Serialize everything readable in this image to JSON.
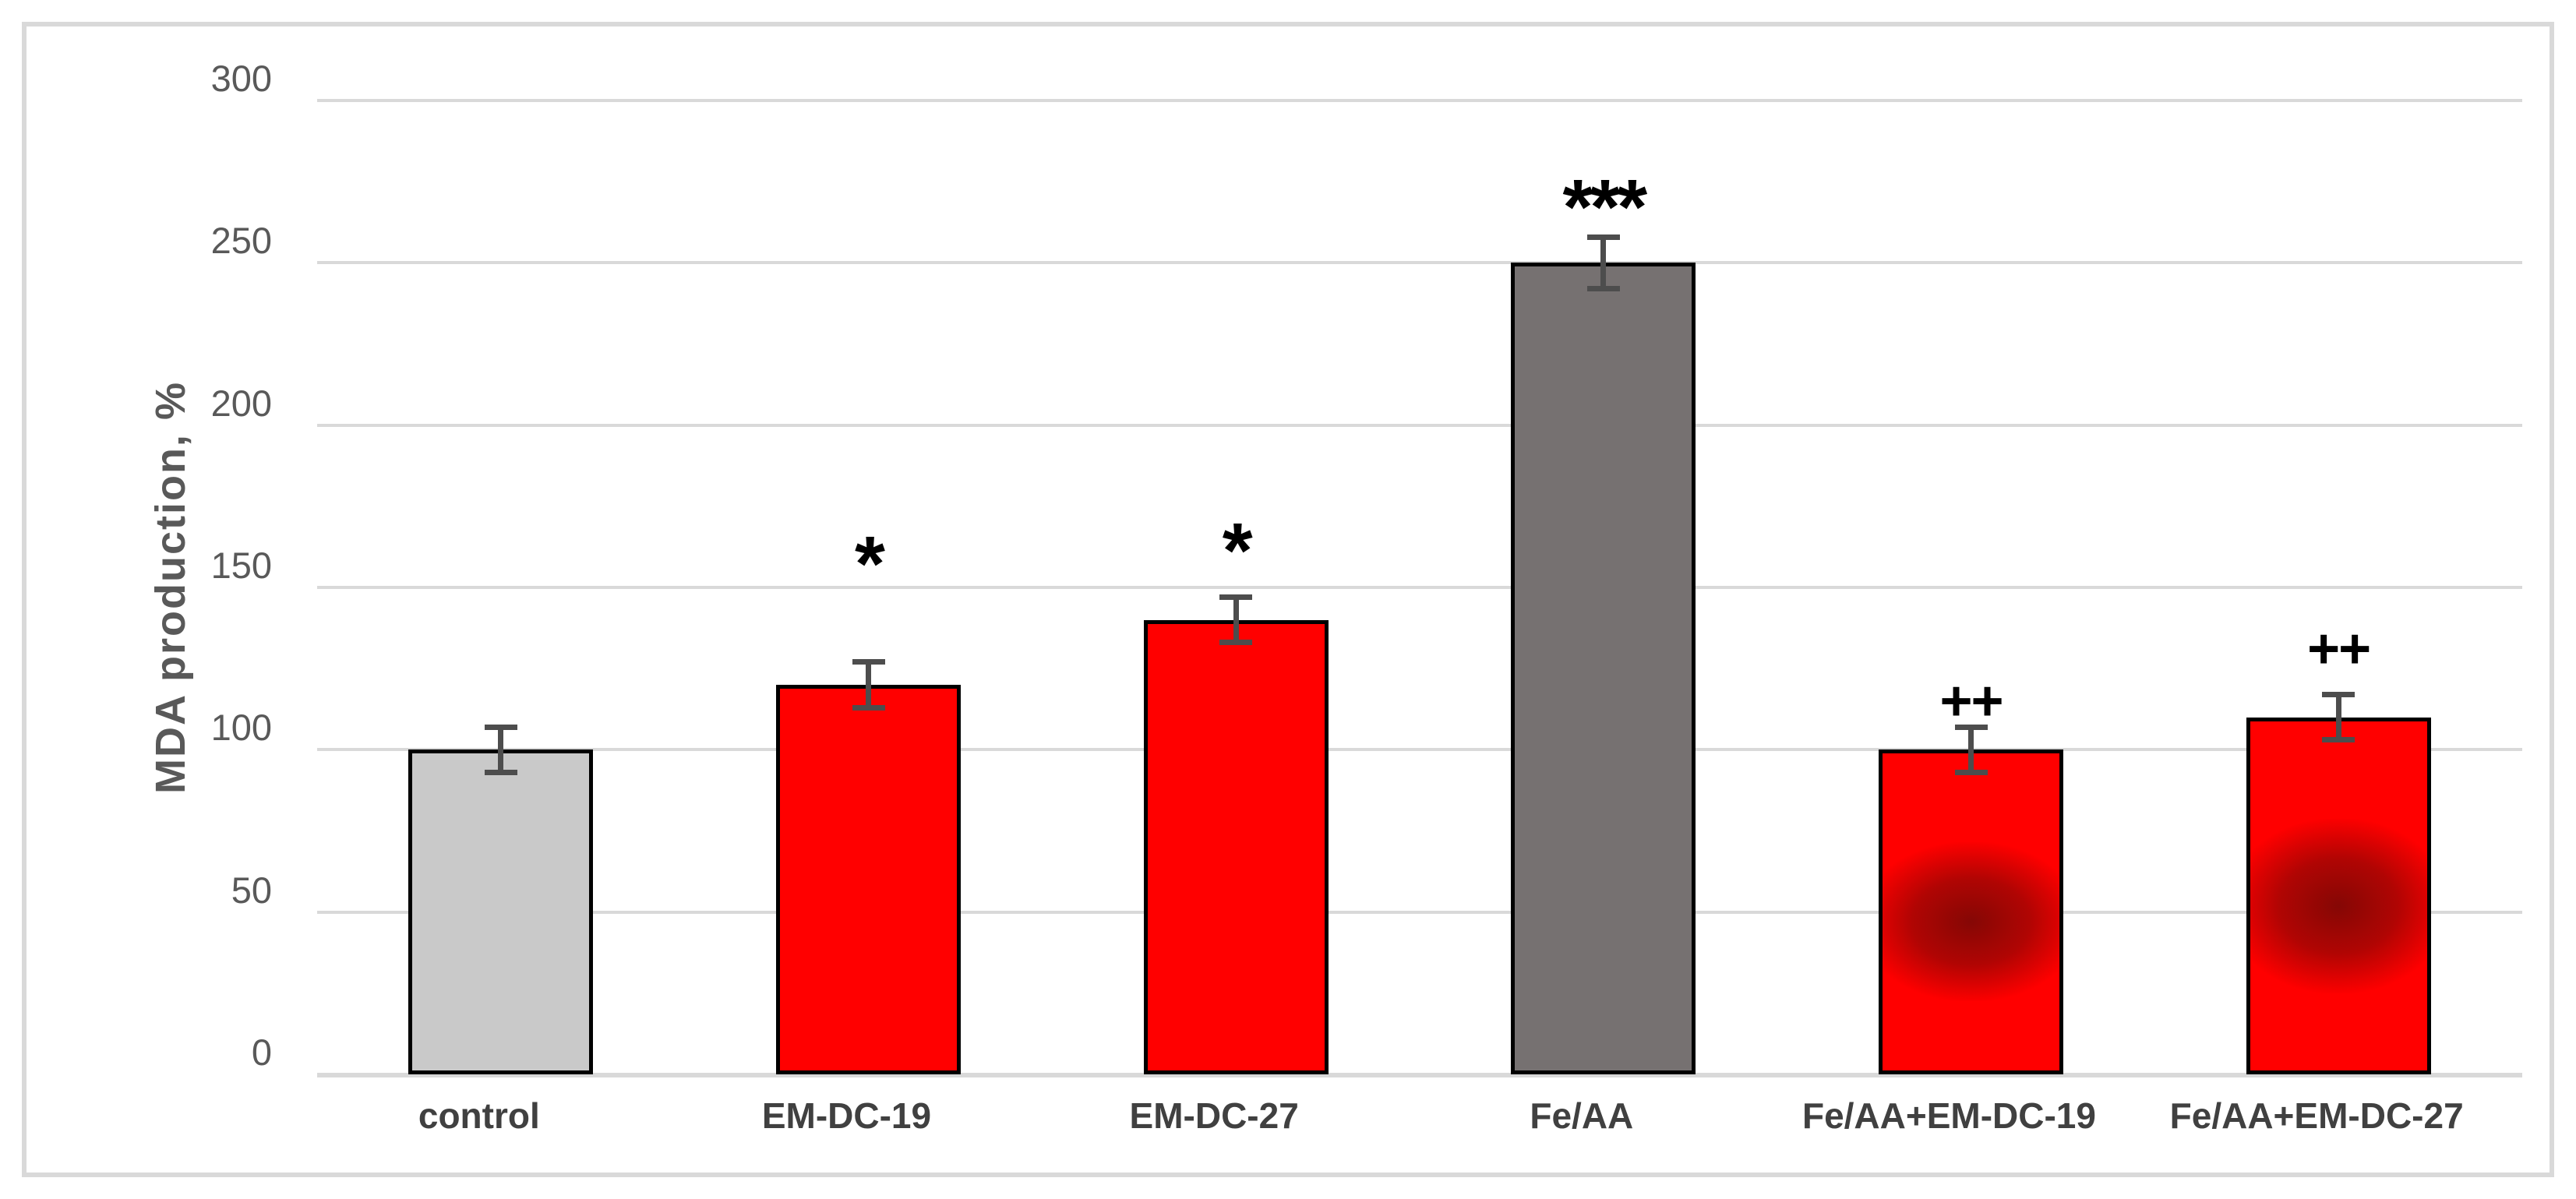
{
  "figure": {
    "background_color": "#ffffff",
    "frame_border_color": "#d9d9d9"
  },
  "chart_data": {
    "type": "bar",
    "title": "",
    "xlabel": "",
    "ylabel": "MDA production, %",
    "categories": [
      "control",
      "EM-DC-19",
      "EM-DC-27",
      "Fe/AA",
      "Fe/AA+EM-DC-19",
      "Fe/AA+EM-DC-27"
    ],
    "values": [
      100,
      120,
      140,
      250,
      100,
      110
    ],
    "error_bars": [
      7,
      7,
      7,
      8,
      7,
      7
    ],
    "significance_labels": [
      "",
      "*",
      "*",
      "***",
      "++",
      "++"
    ],
    "significance_label_y": [
      0,
      162,
      166,
      272,
      115,
      131
    ],
    "bar_colors": [
      "#c9c9c9",
      "#ff0000",
      "#ff0000",
      "#767171",
      "#ff0000",
      "#ff0000"
    ],
    "bar_border_color": "#000000",
    "error_bar_color": "#4d4d4d",
    "gridline_color": "#d9d9d9",
    "tick_label_color": "#595959",
    "category_label_color": "#404040",
    "smudge_overlays": [
      false,
      false,
      false,
      false,
      true,
      true
    ],
    "ylim": [
      0,
      300
    ],
    "yticks": [
      0,
      50,
      100,
      150,
      200,
      250,
      300
    ],
    "grid": true,
    "legend": false
  }
}
